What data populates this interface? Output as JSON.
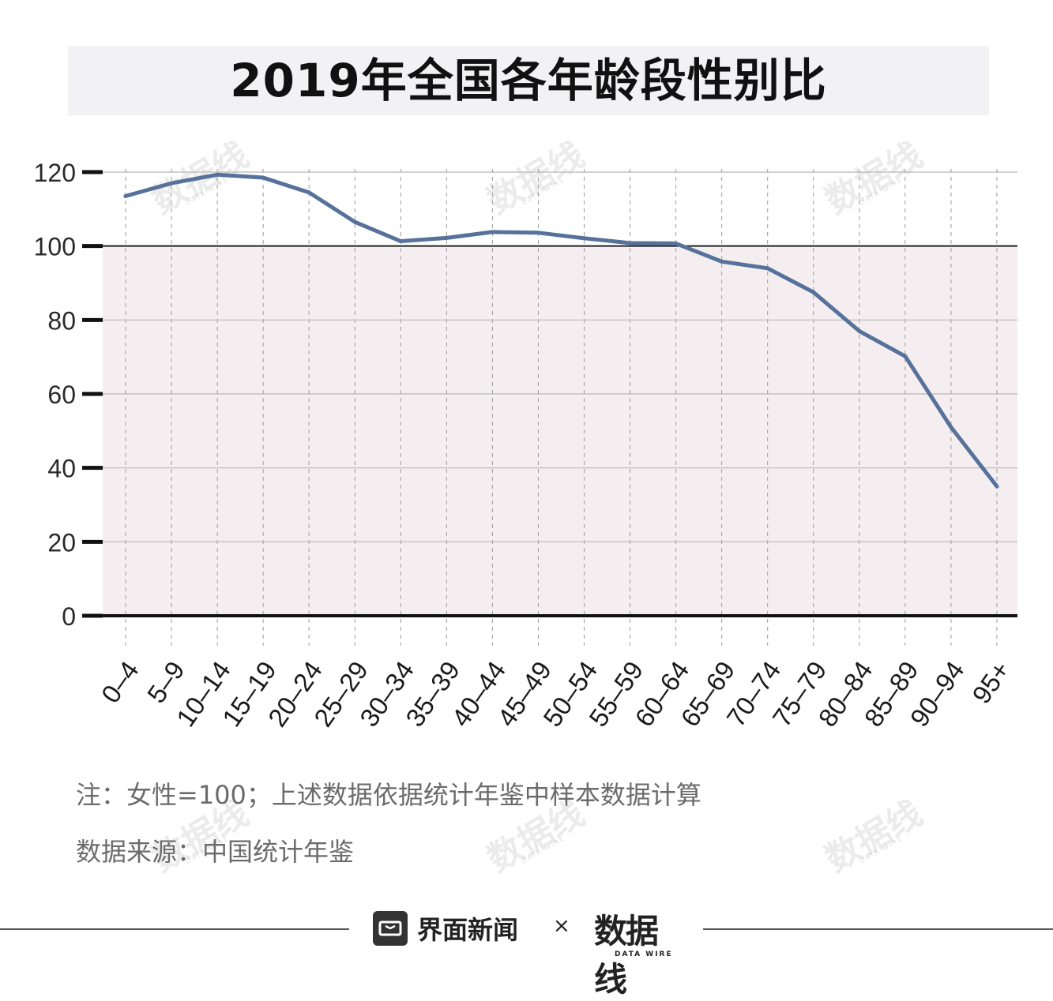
{
  "title": "2019年全国各年龄段性别比",
  "chart_data": {
    "type": "line",
    "categories": [
      "0–4",
      "5–9",
      "10–14",
      "15–19",
      "20–24",
      "25–29",
      "30–34",
      "35–39",
      "40–44",
      "45–49",
      "50–54",
      "55–59",
      "60–64",
      "65–69",
      "70–74",
      "75–79",
      "80–84",
      "85–89",
      "90–94",
      "95+"
    ],
    "series": [
      {
        "values": [
          113.5,
          117.0,
          119.3,
          118.5,
          114.5,
          106.5,
          101.3,
          102.2,
          103.8,
          103.6,
          102.1,
          100.8,
          100.7,
          95.8,
          94.0,
          87.5,
          77.0,
          70.2,
          51.0,
          35.0
        ]
      }
    ],
    "yticks": [
      0,
      20,
      40,
      60,
      80,
      100,
      120
    ],
    "ylim": [
      0,
      120
    ],
    "reference_line": 100,
    "grid": true,
    "title": "2019年全国各年龄段性别比",
    "xlabel": "",
    "ylabel": ""
  },
  "notes": {
    "note": "注：女性=100；上述数据依据统计年鉴中样本数据计算",
    "source": "数据来源：中国统计年鉴"
  },
  "brand": {
    "name": "界面新闻",
    "times": "×",
    "partner": "数据线",
    "partner_sub": "DATA WIRE"
  },
  "colors": {
    "line": "#56719a",
    "shade": "#f5eef1",
    "title_band": "#f2f2f4"
  }
}
